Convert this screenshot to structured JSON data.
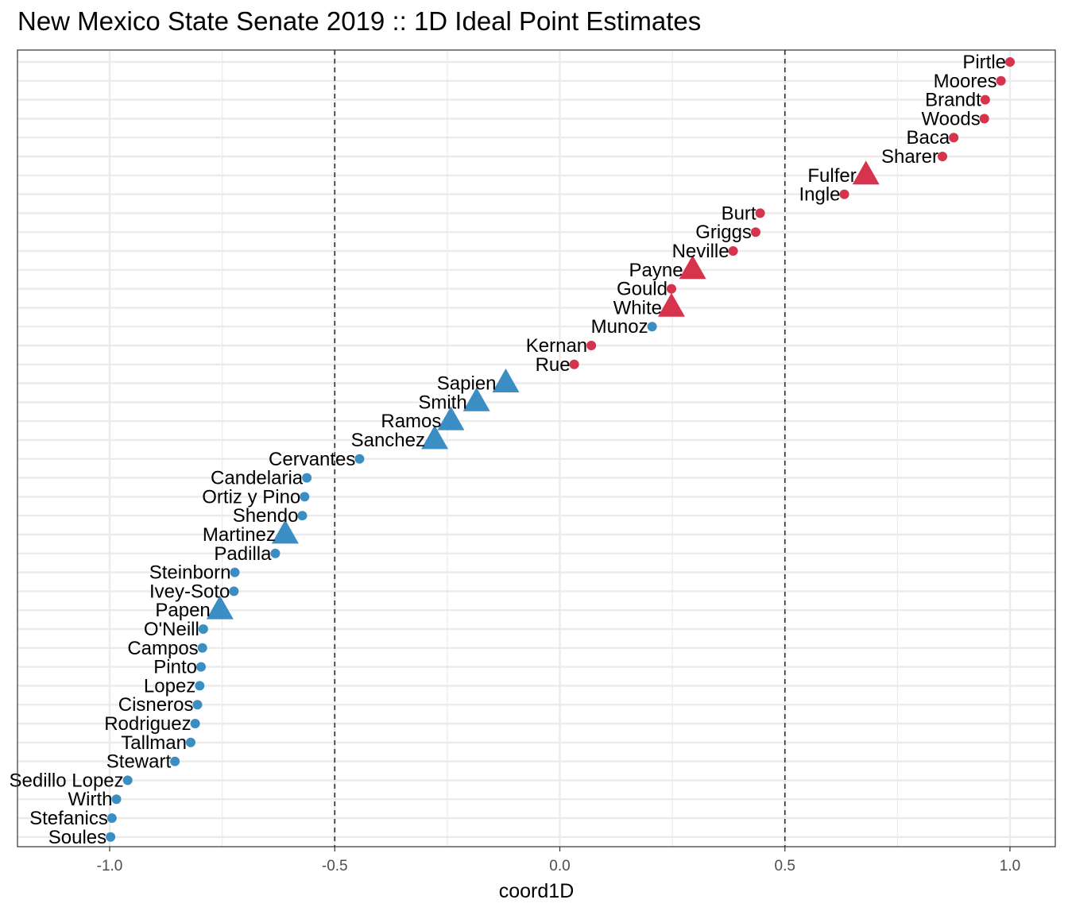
{
  "chart_data": {
    "type": "scatter",
    "title": "New Mexico State Senate 2019 :: 1D Ideal Point Estimates",
    "xlabel": "coord1D",
    "ylabel": "",
    "xlim": [
      -1.2,
      1.1
    ],
    "x_ticks": [
      -1.0,
      -0.5,
      0.0,
      0.5,
      1.0
    ],
    "x_tick_labels": [
      "-1.0",
      "-0.5",
      "0.0",
      "0.5",
      "1.0"
    ],
    "reference_lines": [
      -0.5,
      0.5
    ],
    "grid": true,
    "colors": {
      "republican": "#d6334d",
      "democrat": "#3b8ec4",
      "reference_line": "#333333",
      "grid": "#ebebeb",
      "panel_border": "#333333"
    },
    "shape_legend": {
      "circle": "dot",
      "triangle": "triangle"
    },
    "points": [
      {
        "name": "Pirtle",
        "x": 1.0,
        "party": "republican",
        "shape": "circle"
      },
      {
        "name": "Moores",
        "x": 0.98,
        "party": "republican",
        "shape": "circle"
      },
      {
        "name": "Brandt",
        "x": 0.945,
        "party": "republican",
        "shape": "circle"
      },
      {
        "name": "Woods",
        "x": 0.943,
        "party": "republican",
        "shape": "circle"
      },
      {
        "name": "Baca",
        "x": 0.875,
        "party": "republican",
        "shape": "circle"
      },
      {
        "name": "Sharer",
        "x": 0.85,
        "party": "republican",
        "shape": "circle"
      },
      {
        "name": "Fulfer",
        "x": 0.68,
        "party": "republican",
        "shape": "triangle"
      },
      {
        "name": "Ingle",
        "x": 0.632,
        "party": "republican",
        "shape": "circle"
      },
      {
        "name": "Burt",
        "x": 0.445,
        "party": "republican",
        "shape": "circle"
      },
      {
        "name": "Griggs",
        "x": 0.435,
        "party": "republican",
        "shape": "circle"
      },
      {
        "name": "Neville",
        "x": 0.385,
        "party": "republican",
        "shape": "circle"
      },
      {
        "name": "Payne",
        "x": 0.295,
        "party": "republican",
        "shape": "triangle"
      },
      {
        "name": "Gould",
        "x": 0.248,
        "party": "republican",
        "shape": "circle"
      },
      {
        "name": "White",
        "x": 0.248,
        "party": "republican",
        "shape": "triangle"
      },
      {
        "name": "Munoz",
        "x": 0.205,
        "party": "democrat",
        "shape": "circle"
      },
      {
        "name": "Kernan",
        "x": 0.07,
        "party": "republican",
        "shape": "circle"
      },
      {
        "name": "Rue",
        "x": 0.032,
        "party": "republican",
        "shape": "circle"
      },
      {
        "name": "Sapien",
        "x": -0.12,
        "party": "democrat",
        "shape": "triangle"
      },
      {
        "name": "Smith",
        "x": -0.185,
        "party": "democrat",
        "shape": "triangle"
      },
      {
        "name": "Ramos",
        "x": -0.242,
        "party": "democrat",
        "shape": "triangle"
      },
      {
        "name": "Sanchez",
        "x": -0.278,
        "party": "democrat",
        "shape": "triangle"
      },
      {
        "name": "Cervantes",
        "x": -0.445,
        "party": "democrat",
        "shape": "circle"
      },
      {
        "name": "Candelaria",
        "x": -0.562,
        "party": "democrat",
        "shape": "circle"
      },
      {
        "name": "Ortiz y Pino",
        "x": -0.567,
        "party": "democrat",
        "shape": "circle"
      },
      {
        "name": "Shendo",
        "x": -0.572,
        "party": "democrat",
        "shape": "circle"
      },
      {
        "name": "Martinez",
        "x": -0.61,
        "party": "democrat",
        "shape": "triangle"
      },
      {
        "name": "Padilla",
        "x": -0.632,
        "party": "democrat",
        "shape": "circle"
      },
      {
        "name": "Steinborn",
        "x": -0.722,
        "party": "democrat",
        "shape": "circle"
      },
      {
        "name": "Ivey-Soto",
        "x": -0.724,
        "party": "democrat",
        "shape": "circle"
      },
      {
        "name": "Papen",
        "x": -0.755,
        "party": "democrat",
        "shape": "triangle"
      },
      {
        "name": "O'Neill",
        "x": -0.792,
        "party": "democrat",
        "shape": "circle"
      },
      {
        "name": "Campos",
        "x": -0.794,
        "party": "democrat",
        "shape": "circle"
      },
      {
        "name": "Pinto",
        "x": -0.797,
        "party": "democrat",
        "shape": "circle"
      },
      {
        "name": "Lopez",
        "x": -0.8,
        "party": "democrat",
        "shape": "circle"
      },
      {
        "name": "Cisneros",
        "x": -0.805,
        "party": "democrat",
        "shape": "circle"
      },
      {
        "name": "Rodriguez",
        "x": -0.81,
        "party": "democrat",
        "shape": "circle"
      },
      {
        "name": "Tallman",
        "x": -0.82,
        "party": "democrat",
        "shape": "circle"
      },
      {
        "name": "Stewart",
        "x": -0.855,
        "party": "democrat",
        "shape": "circle"
      },
      {
        "name": "Sedillo Lopez",
        "x": -0.96,
        "party": "democrat",
        "shape": "circle"
      },
      {
        "name": "Wirth",
        "x": -0.985,
        "party": "democrat",
        "shape": "circle"
      },
      {
        "name": "Stefanics",
        "x": -0.995,
        "party": "democrat",
        "shape": "circle"
      },
      {
        "name": "Soules",
        "x": -0.998,
        "party": "democrat",
        "shape": "circle"
      }
    ]
  }
}
